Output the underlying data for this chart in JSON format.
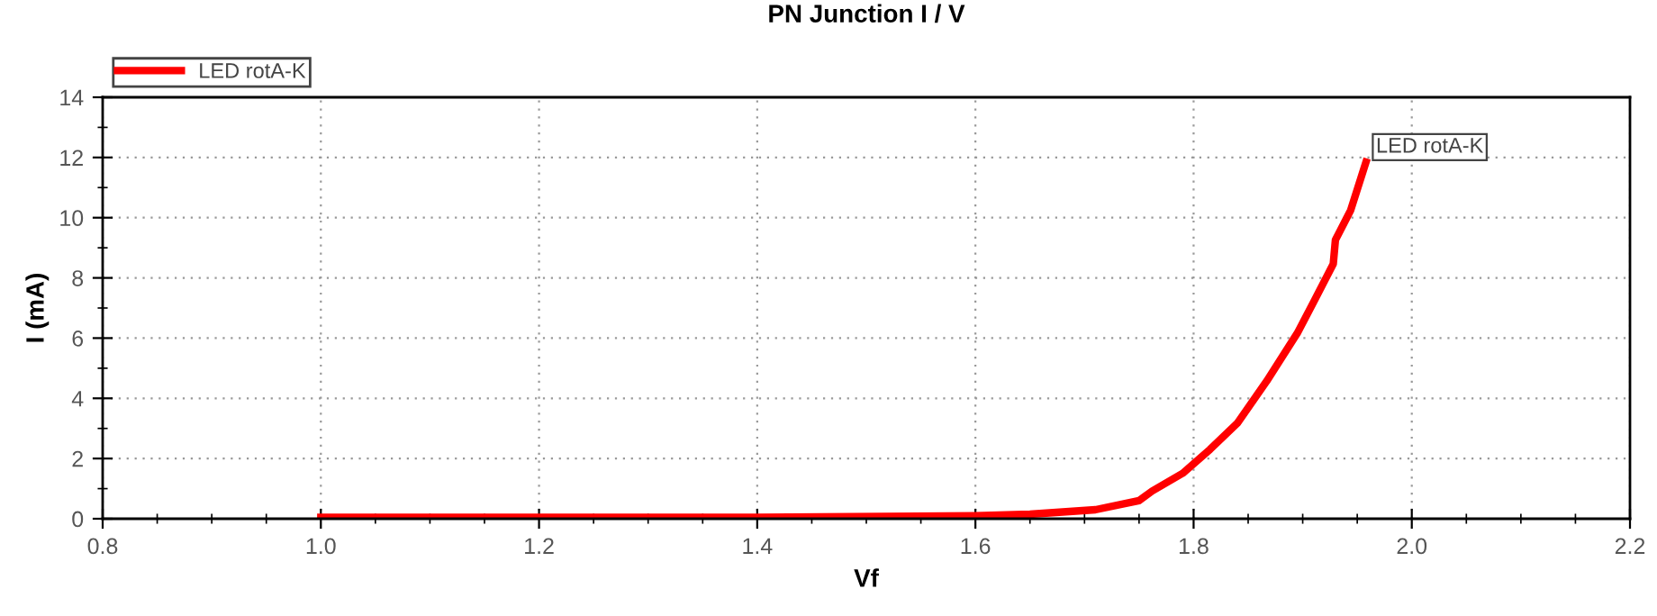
{
  "chart_data": {
    "type": "line",
    "title": "PN Junction I / V",
    "xlabel": "Vf",
    "ylabel": "I (mA)",
    "series": [
      {
        "name": "LED rotA-K",
        "color": "#ff0000",
        "x": [
          1.0,
          1.2,
          1.4,
          1.6,
          1.65,
          1.71,
          1.75,
          1.762,
          1.79,
          1.815,
          1.84,
          1.867,
          1.895,
          1.91,
          1.928,
          1.93,
          1.944,
          1.958
        ],
        "values": [
          0.05,
          0.05,
          0.05,
          0.1,
          0.15,
          0.3,
          0.6,
          0.92,
          1.51,
          2.3,
          3.17,
          4.57,
          6.16,
          7.2,
          8.46,
          9.26,
          10.25,
          11.85
        ]
      }
    ],
    "annotations": [
      {
        "text": "LED rotA-K",
        "x": 1.958,
        "y": 11.85
      }
    ],
    "xlim": [
      0.8,
      2.2
    ],
    "xticks": [
      {
        "value": 0.8,
        "label": "0.8"
      },
      {
        "value": 1.0,
        "label": "1.0"
      },
      {
        "value": 1.2,
        "label": "1.2"
      },
      {
        "value": 1.4,
        "label": "1.4"
      },
      {
        "value": 1.6,
        "label": "1.6"
      },
      {
        "value": 1.8,
        "label": "1.8"
      },
      {
        "value": 2.0,
        "label": "2.0"
      },
      {
        "value": 2.2,
        "label": "2.2"
      }
    ],
    "ylim": [
      0,
      14
    ],
    "yticks": [
      0,
      2,
      4,
      6,
      8,
      10,
      12,
      14
    ],
    "grid": true,
    "legend": "top left",
    "line_style": "solid",
    "marker": "none"
  }
}
